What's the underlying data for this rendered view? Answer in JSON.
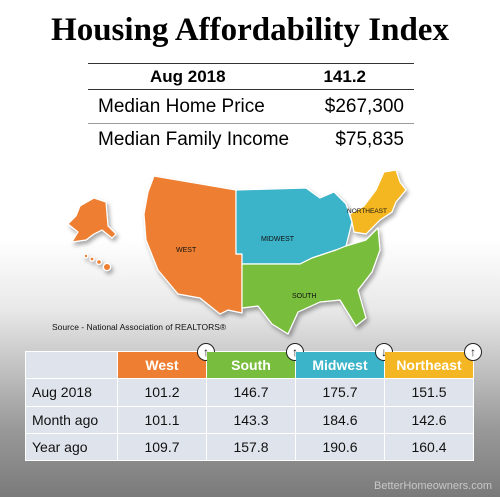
{
  "title": "Housing Affordability Index",
  "summary": {
    "period": "Aug 2018",
    "index": "141.2",
    "rows": [
      {
        "label": "Median Home Price",
        "value": "$267,300"
      },
      {
        "label": "Median Family Income",
        "value": "$75,835"
      }
    ]
  },
  "map": {
    "regions": [
      {
        "name": "WEST",
        "color": "#ee7f32"
      },
      {
        "name": "MIDWEST",
        "color": "#3bb3c9"
      },
      {
        "name": "SOUTH",
        "color": "#79bd3e"
      },
      {
        "name": "NORTHEAST",
        "color": "#f4b723"
      }
    ]
  },
  "source": "Source - National Association of REALTORS®",
  "table": {
    "columns": [
      {
        "label": "West",
        "trend": "up",
        "trend_icon": "↑"
      },
      {
        "label": "South",
        "trend": "up",
        "trend_icon": "↑"
      },
      {
        "label": "Midwest",
        "trend": "down",
        "trend_icon": "↓"
      },
      {
        "label": "Northeast",
        "trend": "up",
        "trend_icon": "↑"
      }
    ],
    "rows": [
      {
        "label": "Aug 2018",
        "values": [
          "101.2",
          "146.7",
          "175.7",
          "151.5"
        ]
      },
      {
        "label": "Month ago",
        "values": [
          "101.1",
          "143.3",
          "184.6",
          "142.6"
        ]
      },
      {
        "label": "Year ago",
        "values": [
          "109.7",
          "157.8",
          "190.6",
          "160.4"
        ]
      }
    ]
  },
  "watermark": "BetterHomeowners.com"
}
